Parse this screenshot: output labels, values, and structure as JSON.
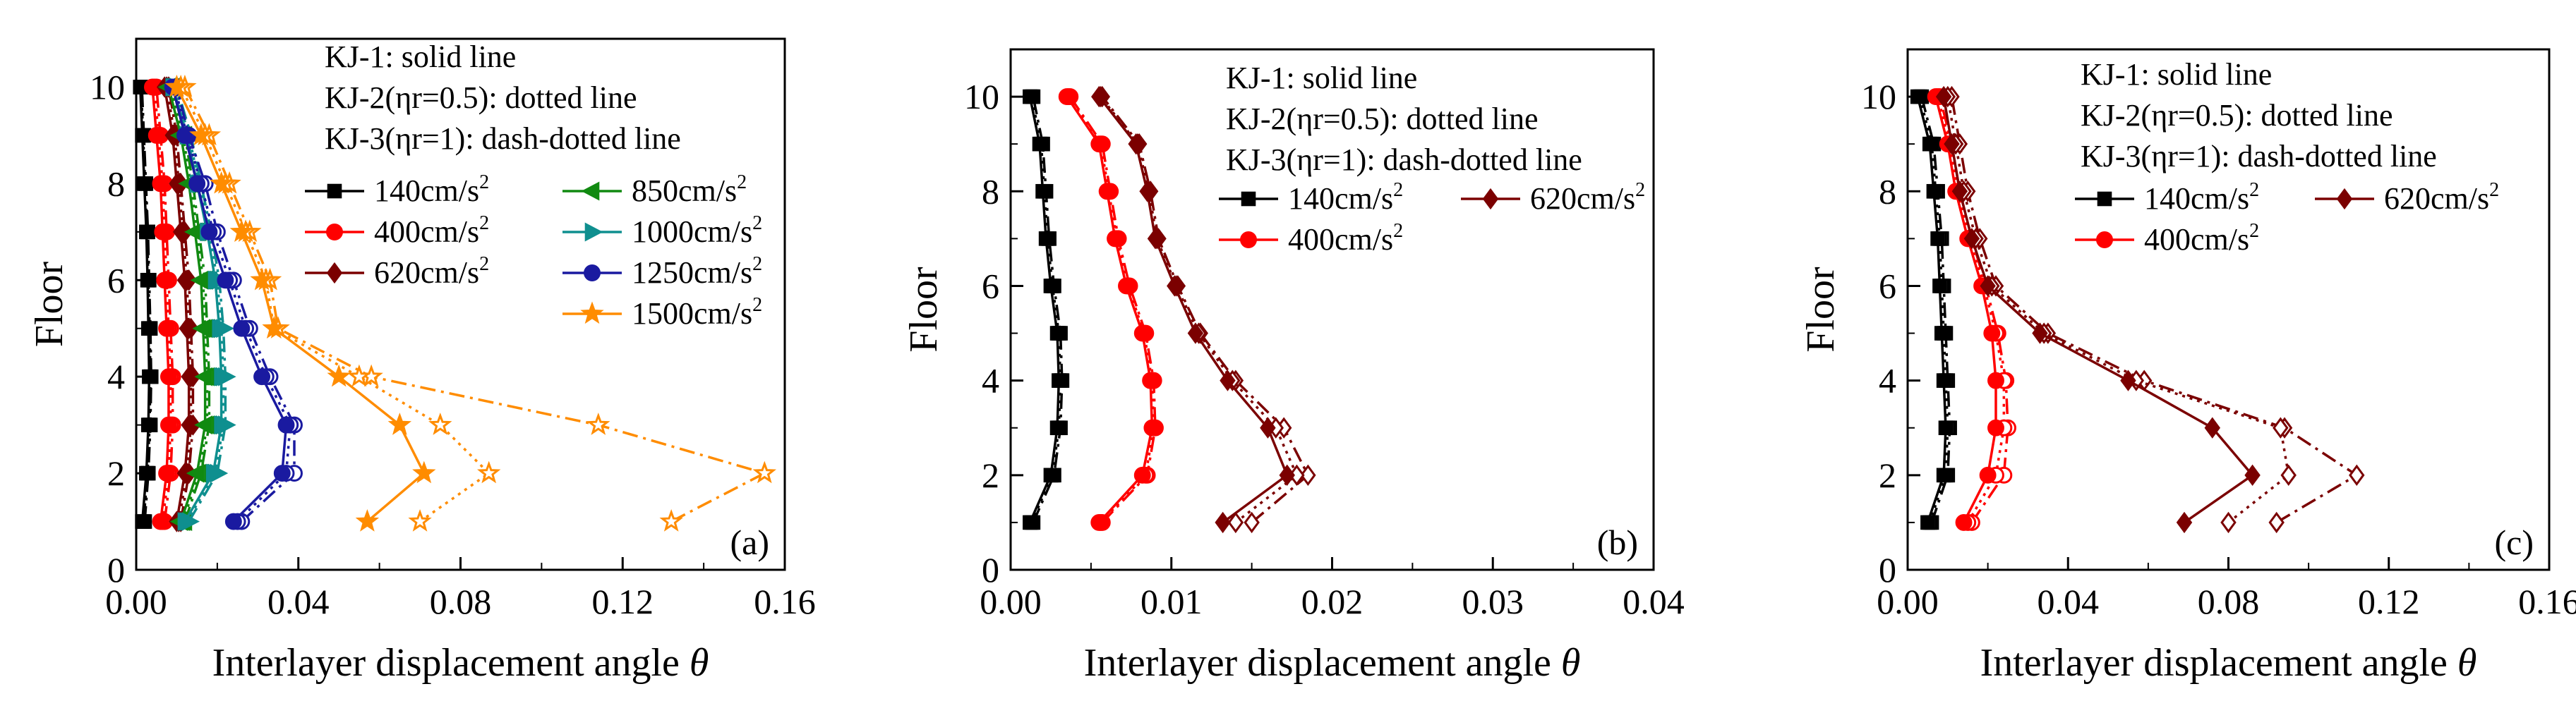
{
  "chart_data": [
    {
      "type": "line",
      "panel_label": "(a)",
      "xlabel": "Interlayer displacement angle",
      "xlabel_symbol": "θ",
      "ylabel": "Floor",
      "xlim": [
        0,
        0.16
      ],
      "ylim": [
        0,
        11
      ],
      "xticks": [
        0,
        0.04,
        0.08,
        0.12,
        0.16
      ],
      "xtick_labels": [
        "0.00",
        "0.04",
        "0.08",
        "0.12",
        "0.16"
      ],
      "yticks": [
        0,
        2,
        4,
        6,
        8,
        10
      ],
      "ytick_labels": [
        "0",
        "2",
        "4",
        "6",
        "8",
        "10"
      ],
      "legend_notes": [
        "KJ-1: solid line",
        "KJ-2(ηr=0.5): dotted line",
        "KJ-3(ηr=1): dash-dotted line"
      ],
      "legend_layout": "two-column",
      "floors": [
        1,
        2,
        3,
        4,
        5,
        6,
        7,
        8,
        9,
        10
      ],
      "series": [
        {
          "name": "140cm/s2",
          "label": "140cm/s",
          "sup": "2",
          "color": "#000000",
          "marker": "square",
          "kj1": [
            0.0015,
            0.0025,
            0.003,
            0.0032,
            0.003,
            0.0028,
            0.0025,
            0.002,
            0.0015,
            0.001
          ],
          "kj2": [
            0.0018,
            0.0028,
            0.0033,
            0.0035,
            0.0033,
            0.003,
            0.0027,
            0.0022,
            0.0017,
            0.0012
          ],
          "kj3": [
            0.0021,
            0.003,
            0.0035,
            0.0037,
            0.0035,
            0.0032,
            0.0029,
            0.0024,
            0.0019,
            0.0014
          ]
        },
        {
          "name": "400cm/s2",
          "label": "400cm/s",
          "sup": "2",
          "color": "#ff0000",
          "marker": "circle",
          "kj1": [
            0.006,
            0.0075,
            0.008,
            0.008,
            0.0075,
            0.007,
            0.0065,
            0.006,
            0.005,
            0.004
          ],
          "kj2": [
            0.0065,
            0.008,
            0.0085,
            0.0085,
            0.008,
            0.0075,
            0.007,
            0.0065,
            0.0055,
            0.0045
          ],
          "kj3": [
            0.007,
            0.0085,
            0.009,
            0.009,
            0.0085,
            0.008,
            0.0075,
            0.007,
            0.006,
            0.005
          ]
        },
        {
          "name": "620cm/s2",
          "label": "620cm/s",
          "sup": "2",
          "color": "#7b0000",
          "marker": "diamond",
          "kj1": [
            0.01,
            0.012,
            0.013,
            0.013,
            0.0125,
            0.012,
            0.011,
            0.01,
            0.009,
            0.007
          ],
          "kj2": [
            0.0105,
            0.0125,
            0.0135,
            0.0135,
            0.013,
            0.0125,
            0.0115,
            0.0105,
            0.0095,
            0.0075
          ],
          "kj3": [
            0.011,
            0.013,
            0.014,
            0.014,
            0.0135,
            0.013,
            0.012,
            0.011,
            0.01,
            0.008
          ]
        },
        {
          "name": "850cm/s2",
          "label": "850cm/s",
          "sup": "2",
          "color": "#118a11",
          "marker": "triangle-left",
          "kj1": [
            0.011,
            0.015,
            0.017,
            0.017,
            0.0165,
            0.016,
            0.0145,
            0.013,
            0.011,
            0.008
          ],
          "kj2": [
            0.0115,
            0.0155,
            0.0175,
            0.0175,
            0.017,
            0.0165,
            0.015,
            0.0135,
            0.0115,
            0.0085
          ],
          "kj3": [
            0.012,
            0.016,
            0.018,
            0.018,
            0.0175,
            0.017,
            0.0155,
            0.014,
            0.012,
            0.009
          ]
        },
        {
          "name": "1000cm/s2",
          "label": "1000cm/s",
          "sup": "2",
          "color": "#0f8f8f",
          "marker": "triangle-right",
          "kj1": [
            0.012,
            0.019,
            0.021,
            0.021,
            0.0205,
            0.0195,
            0.0175,
            0.015,
            0.0125,
            0.009
          ],
          "kj2": [
            0.0125,
            0.0195,
            0.0215,
            0.0215,
            0.021,
            0.02,
            0.018,
            0.0155,
            0.013,
            0.0095
          ],
          "kj3": [
            0.013,
            0.02,
            0.022,
            0.022,
            0.0215,
            0.0205,
            0.0185,
            0.016,
            0.0135,
            0.01
          ]
        },
        {
          "name": "1250cm/s2",
          "label": "1250cm/s",
          "sup": "2",
          "color": "#1a1aa0",
          "marker": "circle",
          "kj1": [
            0.024,
            0.036,
            0.037,
            0.031,
            0.026,
            0.022,
            0.018,
            0.015,
            0.012,
            0.009
          ],
          "kj2": [
            0.025,
            0.037,
            0.038,
            0.032,
            0.027,
            0.023,
            0.019,
            0.016,
            0.0125,
            0.0095
          ],
          "kj3": [
            0.026,
            0.039,
            0.039,
            0.033,
            0.028,
            0.024,
            0.02,
            0.017,
            0.013,
            0.01
          ]
        },
        {
          "name": "1500cm/s2",
          "label": "1500cm/s",
          "sup": "2",
          "color": "#ff8c00",
          "marker": "star",
          "kj1": [
            0.057,
            0.071,
            0.065,
            0.05,
            0.034,
            0.031,
            0.026,
            0.021,
            0.016,
            0.01
          ],
          "kj2": [
            0.07,
            0.087,
            0.075,
            0.055,
            0.034,
            0.032,
            0.027,
            0.022,
            0.017,
            0.011
          ],
          "kj3": [
            0.132,
            0.155,
            0.114,
            0.058,
            0.035,
            0.033,
            0.028,
            0.023,
            0.018,
            0.012
          ]
        }
      ]
    },
    {
      "type": "line",
      "panel_label": "(b)",
      "xlabel": "Interlayer displacement angle",
      "xlabel_symbol": "θ",
      "ylabel": "Floor",
      "xlim": [
        0,
        0.04
      ],
      "ylim": [
        0,
        11
      ],
      "xticks": [
        0,
        0.01,
        0.02,
        0.03,
        0.04
      ],
      "xtick_labels": [
        "0.00",
        "0.01",
        "0.02",
        "0.03",
        "0.04"
      ],
      "yticks": [
        0,
        2,
        4,
        6,
        8,
        10
      ],
      "ytick_labels": [
        "0",
        "2",
        "4",
        "6",
        "8",
        "10"
      ],
      "legend_notes": [
        "KJ-1: solid line",
        "KJ-2(ηr=0.5): dotted line",
        "KJ-3(ηr=1): dash-dotted line"
      ],
      "legend_layout": "three-entry",
      "floors": [
        1,
        2,
        3,
        4,
        5,
        6,
        7,
        8,
        9,
        10
      ],
      "series": [
        {
          "name": "140cm/s2",
          "label": "140cm/s",
          "sup": "2",
          "color": "#000000",
          "marker": "square",
          "kj1": [
            0.0012,
            0.0025,
            0.0029,
            0.003,
            0.0029,
            0.0025,
            0.0022,
            0.002,
            0.0018,
            0.0012
          ],
          "kj2": [
            0.0013,
            0.0026,
            0.003,
            0.0031,
            0.003,
            0.0026,
            0.0023,
            0.0021,
            0.0019,
            0.0013
          ],
          "kj3": [
            0.0014,
            0.0027,
            0.0031,
            0.0032,
            0.0031,
            0.0027,
            0.0024,
            0.0022,
            0.002,
            0.0014
          ]
        },
        {
          "name": "400cm/s2",
          "label": "400cm/s",
          "sup": "2",
          "color": "#ff0000",
          "marker": "circle",
          "kj1": [
            0.0055,
            0.0082,
            0.0088,
            0.0087,
            0.0082,
            0.0072,
            0.0065,
            0.006,
            0.0055,
            0.0035
          ],
          "kj2": [
            0.0056,
            0.0084,
            0.0089,
            0.0088,
            0.0083,
            0.0073,
            0.0066,
            0.0061,
            0.0056,
            0.0036
          ],
          "kj3": [
            0.0057,
            0.0085,
            0.009,
            0.0089,
            0.0084,
            0.0074,
            0.0067,
            0.0062,
            0.0057,
            0.0037
          ]
        },
        {
          "name": "620cm/s2",
          "label": "620cm/s",
          "sup": "2",
          "color": "#7b0000",
          "marker": "diamond",
          "kj1": [
            0.0132,
            0.0172,
            0.016,
            0.0135,
            0.0115,
            0.0102,
            0.009,
            0.0085,
            0.0078,
            0.0055
          ],
          "kj2": [
            0.014,
            0.0178,
            0.0165,
            0.0138,
            0.0117,
            0.0103,
            0.0091,
            0.0086,
            0.0079,
            0.0056
          ],
          "kj3": [
            0.015,
            0.0185,
            0.017,
            0.014,
            0.0118,
            0.0104,
            0.0092,
            0.0087,
            0.008,
            0.0057
          ]
        }
      ]
    },
    {
      "type": "line",
      "panel_label": "(c)",
      "xlabel": "Interlayer displacement angle",
      "xlabel_symbol": "θ",
      "ylabel": "Floor",
      "xlim": [
        0,
        0.16
      ],
      "ylim": [
        0,
        11
      ],
      "xticks": [
        0,
        0.04,
        0.08,
        0.12,
        0.16
      ],
      "xtick_labels": [
        "0.00",
        "0.04",
        "0.08",
        "0.12",
        "0.16"
      ],
      "yticks": [
        0,
        2,
        4,
        6,
        8,
        10
      ],
      "ytick_labels": [
        "0",
        "2",
        "4",
        "6",
        "8",
        "10"
      ],
      "legend_notes": [
        "KJ-1: solid line",
        "KJ-2(ηr=0.5): dotted line",
        "KJ-3(ηr=1): dash-dotted line"
      ],
      "legend_layout": "three-entry",
      "floors": [
        1,
        2,
        3,
        4,
        5,
        6,
        7,
        8,
        9,
        10
      ],
      "series": [
        {
          "name": "140cm/s2",
          "label": "140cm/s",
          "sup": "2",
          "color": "#000000",
          "marker": "square",
          "kj1": [
            0.005,
            0.009,
            0.0095,
            0.009,
            0.0085,
            0.008,
            0.0075,
            0.0065,
            0.0055,
            0.0025
          ],
          "kj2": [
            0.0055,
            0.0095,
            0.01,
            0.0095,
            0.009,
            0.0085,
            0.008,
            0.007,
            0.006,
            0.003
          ],
          "kj3": [
            0.006,
            0.01,
            0.0105,
            0.01,
            0.0095,
            0.009,
            0.0085,
            0.0075,
            0.0065,
            0.0035
          ]
        },
        {
          "name": "400cm/s2",
          "label": "400cm/s",
          "sup": "2",
          "color": "#ff0000",
          "marker": "circle",
          "kj1": [
            0.014,
            0.02,
            0.022,
            0.022,
            0.021,
            0.0185,
            0.015,
            0.012,
            0.01,
            0.007
          ],
          "kj2": [
            0.015,
            0.022,
            0.024,
            0.024,
            0.022,
            0.019,
            0.0155,
            0.0125,
            0.0105,
            0.0075
          ],
          "kj3": [
            0.016,
            0.024,
            0.025,
            0.0245,
            0.0225,
            0.0195,
            0.016,
            0.013,
            0.011,
            0.008
          ]
        },
        {
          "name": "620cm/s2",
          "label": "620cm/s",
          "sup": "2",
          "color": "#7b0000",
          "marker": "diamond",
          "kj1": [
            0.069,
            0.086,
            0.076,
            0.055,
            0.033,
            0.02,
            0.016,
            0.013,
            0.011,
            0.009
          ],
          "kj2": [
            0.08,
            0.095,
            0.093,
            0.057,
            0.034,
            0.021,
            0.017,
            0.014,
            0.012,
            0.01
          ],
          "kj3": [
            0.092,
            0.112,
            0.094,
            0.059,
            0.035,
            0.022,
            0.018,
            0.015,
            0.013,
            0.011
          ]
        }
      ]
    }
  ]
}
